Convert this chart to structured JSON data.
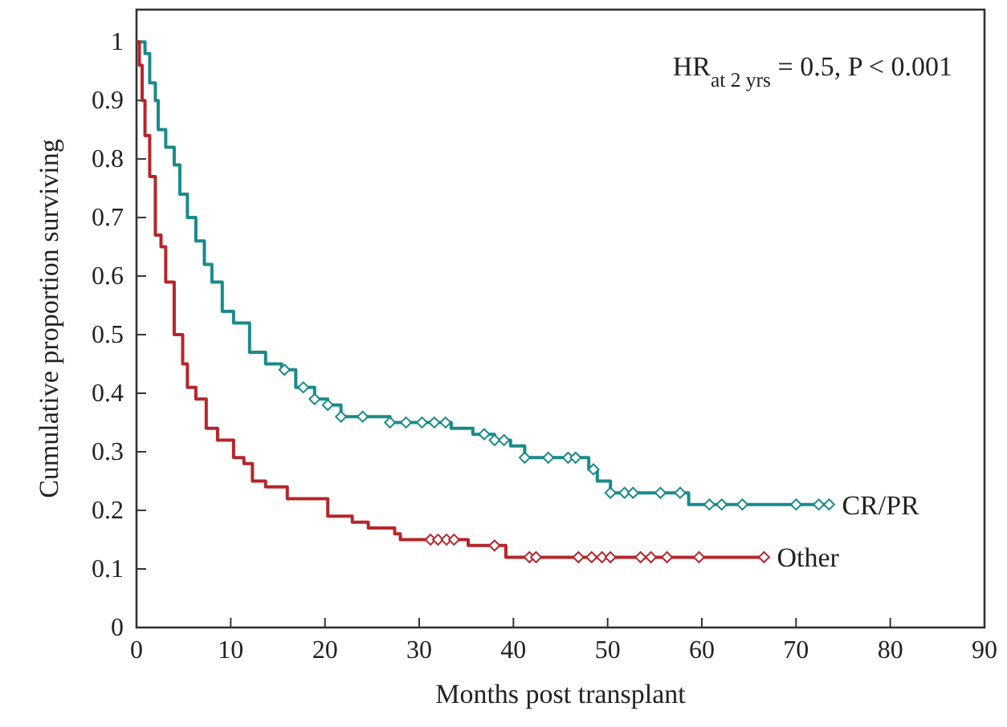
{
  "chart_data": {
    "type": "step",
    "xlabel": "Months post transplant",
    "ylabel": "Cumulative proportion surviving",
    "annotations": [
      "HR$_{at 2 yrs}$ = 0.5, P < 0.001"
    ],
    "xlim": [
      0,
      90
    ],
    "xticks": [
      0,
      10,
      20,
      30,
      40,
      50,
      60,
      70,
      80,
      90
    ],
    "ylim": [
      0,
      1.055
    ],
    "yticks": [
      0,
      0.1,
      0.2,
      0.3,
      0.4,
      0.5,
      0.6,
      0.7,
      0.8,
      0.9,
      1
    ],
    "grid": false,
    "legend": false,
    "line_style": "solid",
    "series": [
      {
        "name": "CR/PR",
        "color": "#1a8a8a",
        "x": [
          0,
          0.9,
          1.4,
          2.0,
          2.3,
          3.1,
          4.0,
          4.6,
          5.4,
          6.3,
          7.2,
          8.0,
          9.1,
          10.3,
          12.0,
          13.7,
          15.4,
          16.9,
          18.9,
          20.3,
          21.7,
          26.9,
          30.0,
          33.4,
          35.7,
          38.0,
          39.7,
          41.2,
          48.0,
          48.9,
          50.3,
          58.6,
          73.5
        ],
        "values": [
          1.0,
          0.98,
          0.93,
          0.9,
          0.85,
          0.82,
          0.79,
          0.74,
          0.7,
          0.66,
          0.62,
          0.59,
          0.54,
          0.52,
          0.47,
          0.45,
          0.44,
          0.41,
          0.39,
          0.38,
          0.36,
          0.35,
          0.35,
          0.34,
          0.33,
          0.32,
          0.31,
          0.29,
          0.27,
          0.25,
          0.23,
          0.21,
          0.21
        ]
      },
      {
        "name": "Other",
        "color": "#b5262b",
        "x": [
          0,
          0.3,
          0.6,
          0.9,
          1.4,
          2.0,
          2.6,
          3.1,
          4.0,
          4.9,
          5.4,
          6.3,
          7.4,
          8.6,
          10.3,
          11.4,
          12.3,
          13.7,
          15.4,
          16.0,
          20.3,
          22.3,
          22.9,
          24.6,
          27.4,
          28.0,
          31.5,
          35.2,
          39.2,
          66.6
        ],
        "values": [
          1.0,
          0.96,
          0.9,
          0.84,
          0.77,
          0.67,
          0.65,
          0.59,
          0.5,
          0.45,
          0.41,
          0.39,
          0.34,
          0.32,
          0.29,
          0.28,
          0.25,
          0.24,
          0.24,
          0.22,
          0.19,
          0.19,
          0.18,
          0.17,
          0.16,
          0.15,
          0.15,
          0.14,
          0.12,
          0.12
        ]
      },
      {
        "type": "scatter",
        "marker": "diamond",
        "color": "#1a8a8a",
        "x": [
          15.7,
          17.7,
          18.9,
          20.3,
          21.7,
          24.0,
          26.9,
          28.6,
          30.3,
          31.6,
          32.8,
          36.9,
          38.0,
          39.0,
          41.2,
          43.7,
          45.8,
          46.6,
          48.5,
          50.3,
          51.8,
          52.7,
          55.6,
          57.7,
          60.8,
          62.1,
          64.3,
          70.0,
          72.4,
          73.5
        ],
        "values": [
          0.44,
          0.41,
          0.39,
          0.38,
          0.36,
          0.36,
          0.35,
          0.35,
          0.35,
          0.35,
          0.35,
          0.33,
          0.32,
          0.32,
          0.29,
          0.29,
          0.29,
          0.29,
          0.27,
          0.23,
          0.23,
          0.23,
          0.23,
          0.23,
          0.21,
          0.21,
          0.21,
          0.21,
          0.21,
          0.21
        ]
      },
      {
        "type": "scatter",
        "marker": "diamond",
        "color": "#b5262b",
        "x": [
          31.2,
          32.0,
          32.9,
          33.7,
          38.0,
          41.7,
          42.4,
          46.9,
          48.3,
          49.4,
          50.3,
          53.5,
          54.6,
          56.3,
          59.7,
          66.6
        ],
        "values": [
          0.15,
          0.15,
          0.15,
          0.15,
          0.14,
          0.12,
          0.12,
          0.12,
          0.12,
          0.12,
          0.12,
          0.12,
          0.12,
          0.12,
          0.12,
          0.12
        ]
      }
    ]
  }
}
